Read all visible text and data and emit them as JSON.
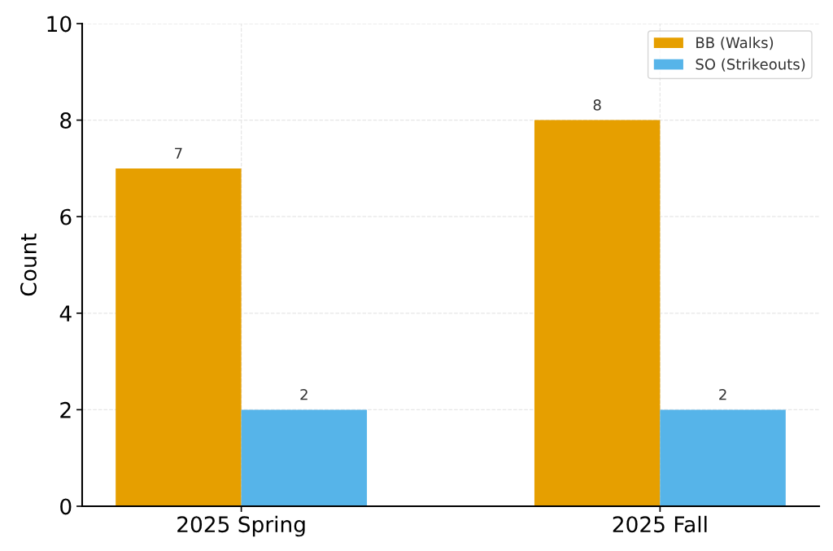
{
  "chart_data": {
    "type": "bar",
    "ylabel": "Count",
    "categories": [
      "2025 Spring",
      "2025 Fall"
    ],
    "series": [
      {
        "name": "BB (Walks)",
        "color": "#e69f00",
        "values": [
          7,
          8
        ]
      },
      {
        "name": "SO (Strikeouts)",
        "color": "#56b4e9",
        "values": [
          2,
          2
        ]
      }
    ],
    "ylim": [
      0,
      10
    ],
    "yticks": [
      0,
      2,
      4,
      6,
      8,
      10
    ],
    "grid": true,
    "legend": "top right",
    "data_labels": true
  }
}
